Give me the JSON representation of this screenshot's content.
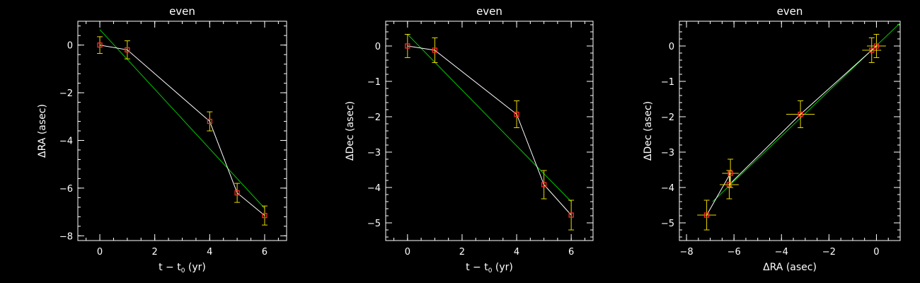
{
  "colors": {
    "background": "#000000",
    "axes": "#ffffff",
    "observed_line": "#ffffff",
    "fit_line": "#00c800",
    "marker": "#ff2a2a",
    "error_bar": "#e8d800"
  },
  "chart_data": [
    {
      "type": "scatter",
      "title": "even",
      "xlabel": "t − t",
      "xlabel_sub": "0",
      "xlabel_unit": " (yr)",
      "ylabel": "ΔRA (asec)",
      "xlim": [
        -0.8,
        6.8
      ],
      "ylim": [
        -8.2,
        1.0
      ],
      "xticks": [
        0,
        2,
        4,
        6
      ],
      "xtick_labels": [
        "0",
        "2",
        "4",
        "6"
      ],
      "yticks": [
        -8,
        -6,
        -4,
        -2,
        0
      ],
      "ytick_labels": [
        "−8",
        "−6",
        "−4",
        "−2",
        "0"
      ],
      "points": [
        {
          "x": 0,
          "y": 0.0,
          "yerr": 0.35
        },
        {
          "x": 1,
          "y": -0.2,
          "yerr": 0.38
        },
        {
          "x": 4,
          "y": -3.2,
          "yerr": 0.4
        },
        {
          "x": 5,
          "y": -6.2,
          "yerr": 0.4
        },
        {
          "x": 6,
          "y": -7.15,
          "yerr": 0.4
        }
      ],
      "fit": {
        "x": [
          0,
          6
        ],
        "y": [
          0.65,
          -6.85
        ]
      }
    },
    {
      "type": "scatter",
      "title": "even",
      "xlabel": "t − t",
      "xlabel_sub": "0",
      "xlabel_unit": " (yr)",
      "ylabel": "ΔDec (asec)",
      "xlim": [
        -0.8,
        6.8
      ],
      "ylim": [
        -5.5,
        0.7
      ],
      "xticks": [
        0,
        2,
        4,
        6
      ],
      "xtick_labels": [
        "0",
        "2",
        "4",
        "6"
      ],
      "yticks": [
        -5,
        -4,
        -3,
        -2,
        -1,
        0
      ],
      "ytick_labels": [
        "−5",
        "−4",
        "−3",
        "−2",
        "−1",
        "0"
      ],
      "points": [
        {
          "x": 0,
          "y": 0.0,
          "yerr": 0.33
        },
        {
          "x": 1,
          "y": -0.12,
          "yerr": 0.35
        },
        {
          "x": 4,
          "y": -1.93,
          "yerr": 0.38
        },
        {
          "x": 5,
          "y": -3.92,
          "yerr": 0.4
        },
        {
          "x": 6,
          "y": -4.78,
          "yerr": 0.42
        }
      ],
      "fit": {
        "x": [
          0,
          6
        ],
        "y": [
          0.33,
          -4.4
        ]
      }
    },
    {
      "type": "scatter",
      "title": "even",
      "xlabel": "ΔRA (asec)",
      "xlabel_sub": "",
      "xlabel_unit": "",
      "ylabel": "ΔDec (asec)",
      "xlim": [
        -8.3,
        1.0
      ],
      "ylim": [
        -5.5,
        0.7
      ],
      "xticks": [
        -8,
        -6,
        -4,
        -2,
        0
      ],
      "xtick_labels": [
        "−8",
        "−6",
        "−4",
        "−2",
        "0"
      ],
      "yticks": [
        -5,
        -4,
        -3,
        -2,
        -1,
        0
      ],
      "ytick_labels": [
        "−5",
        "−4",
        "−3",
        "−2",
        "−1",
        "0"
      ],
      "points": [
        {
          "x": 0.0,
          "y": 0.0,
          "xerr": 0.4,
          "yerr": 0.33
        },
        {
          "x": -0.2,
          "y": -0.12,
          "xerr": 0.4,
          "yerr": 0.35
        },
        {
          "x": -3.2,
          "y": -1.93,
          "xerr": 0.6,
          "yerr": 0.38
        },
        {
          "x": -6.2,
          "y": -3.92,
          "xerr": 0.4,
          "yerr": 0.4
        },
        {
          "x": -6.15,
          "y": -3.6,
          "xerr": 0.35,
          "yerr": 0.4
        },
        {
          "x": -7.15,
          "y": -4.78,
          "xerr": 0.4,
          "yerr": 0.42
        }
      ],
      "line_points": [
        {
          "x": 0.0,
          "y": 0.0
        },
        {
          "x": -0.2,
          "y": -0.12
        },
        {
          "x": -3.2,
          "y": -1.93
        },
        {
          "x": -6.2,
          "y": -3.92
        },
        {
          "x": -6.15,
          "y": -3.6
        },
        {
          "x": -7.15,
          "y": -4.78
        }
      ],
      "fit": {
        "x": [
          -6.9,
          1.0
        ],
        "y": [
          -4.4,
          0.65
        ]
      }
    }
  ]
}
